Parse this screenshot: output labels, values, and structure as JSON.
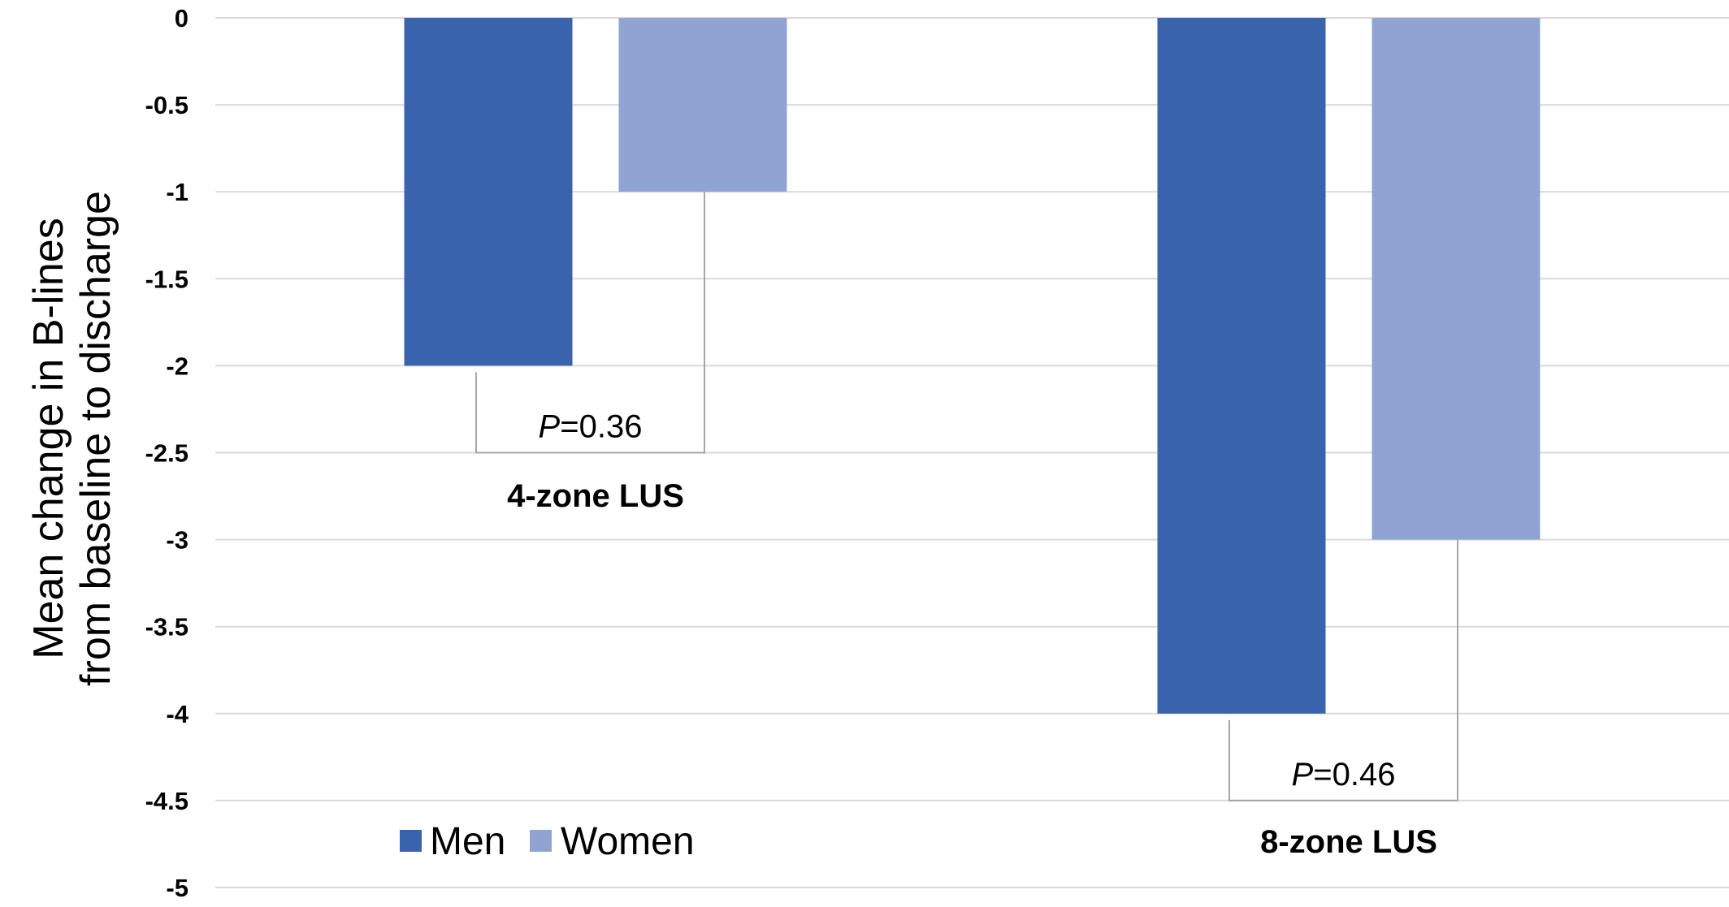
{
  "chart_data": {
    "type": "bar",
    "title": "",
    "xlabel": "",
    "ylabel_lines": [
      "Mean change in B-lines",
      "from baseline to discharge"
    ],
    "categories": [
      "4-zone LUS",
      "8-zone LUS"
    ],
    "series": [
      {
        "name": "Men",
        "values": [
          -2,
          -4
        ],
        "color": "#3A63AD"
      },
      {
        "name": "Women",
        "values": [
          -1,
          -3
        ],
        "color": "#90A4D4"
      }
    ],
    "ylim": [
      -5,
      0
    ],
    "yticks": [
      0,
      -0.5,
      -1,
      -1.5,
      -2,
      -2.5,
      -3,
      -3.5,
      -4,
      -4.5,
      -5
    ],
    "ytick_labels": [
      "0",
      "-0.5",
      "-1",
      "-1.5",
      "-2",
      "-2.5",
      "-3",
      "-3.5",
      "-4",
      "-4.5",
      "-5"
    ],
    "grid": true,
    "gridline_color": "#d9d9d9",
    "legend_position": "bottom-left",
    "annotations": [
      {
        "category": "4-zone LUS",
        "p_label": "P",
        "p_value": "=0.36",
        "bracket_bottom": -2.5
      },
      {
        "category": "8-zone LUS",
        "p_label": "P",
        "p_value": "=0.46",
        "bracket_bottom": -4.5
      }
    ]
  }
}
